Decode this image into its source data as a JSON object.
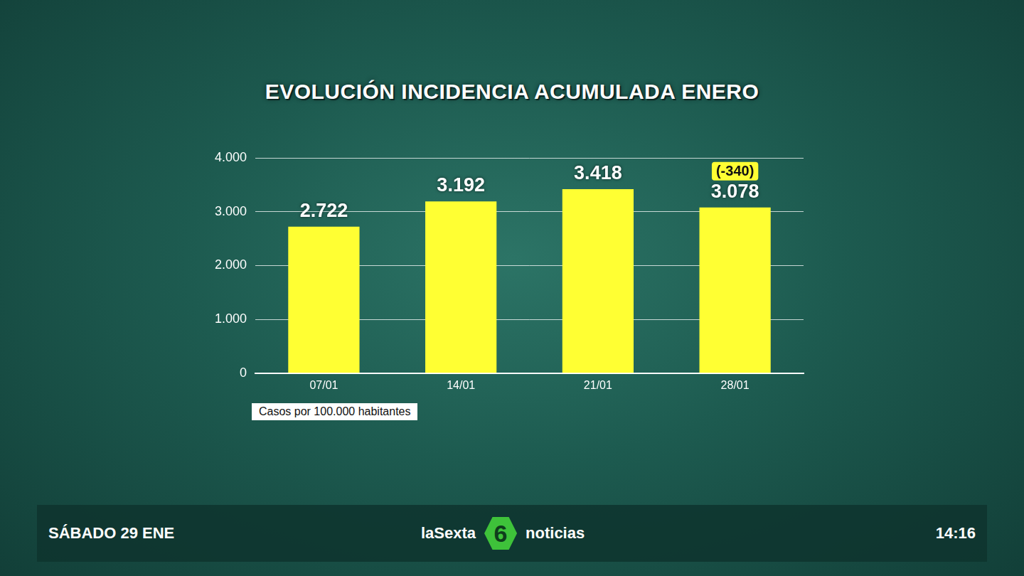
{
  "chart_data": {
    "type": "bar",
    "title": "EVOLUCIÓN INCIDENCIA ACUMULADA ENERO",
    "categories": [
      "07/01",
      "14/01",
      "21/01",
      "28/01"
    ],
    "values": [
      2722,
      3192,
      3418,
      3078
    ],
    "value_labels": [
      "2.722",
      "3.192",
      "3.418",
      "3.078"
    ],
    "color": "#ffff33",
    "ylim": [
      0,
      4000
    ],
    "yticks": [
      0,
      {
        "value": 1000,
        "label": "1.000"
      },
      {
        "value": 2000,
        "label": "2.000"
      },
      {
        "value": 3000,
        "label": "3.000"
      },
      {
        "value": 4000,
        "label": "4.000"
      }
    ],
    "grid": true,
    "data_labels": true,
    "annotations": [
      {
        "category": "28/01",
        "text": "(-340)"
      }
    ],
    "footnote": "Casos por 100.000 habitantes"
  },
  "footer": {
    "date": "SÁBADO 29 ENE",
    "brand": "laSexta",
    "logo": "6",
    "program": "noticias",
    "time": "14:16"
  }
}
